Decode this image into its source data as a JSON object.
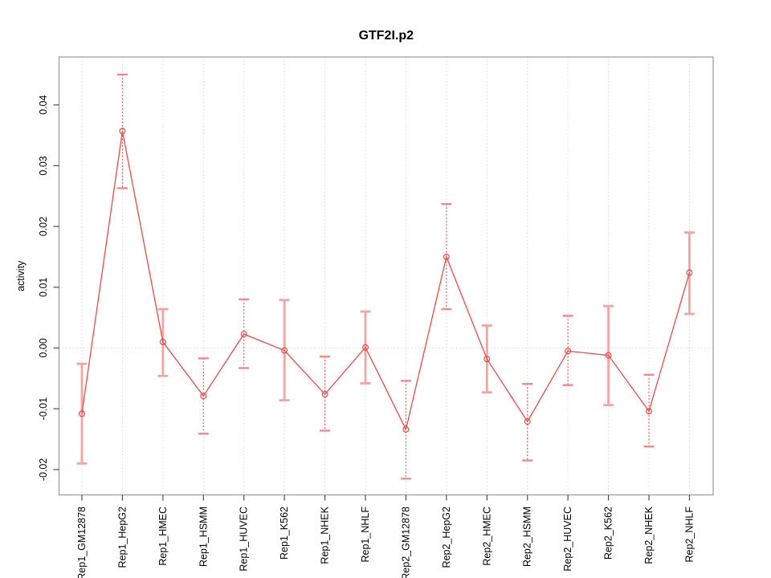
{
  "chart_data": {
    "type": "line",
    "title": "GTF2I.p2",
    "xlabel": "",
    "ylabel": "activity",
    "grid": {
      "vertical": "dotted line at every category",
      "horizontal": "dotted line at y=0 only"
    },
    "ylim": [
      -0.0244,
      0.0478
    ],
    "yticks": [
      -0.02,
      -0.01,
      0,
      0.01,
      0.02,
      0.03,
      0.04
    ],
    "ytick_labels": [
      "-0.02",
      "-0.01",
      "0.00",
      "0.01",
      "0.02",
      "0.03",
      "0.04"
    ],
    "categories": [
      "Rep1_GM12878",
      "Rep1_HepG2",
      "Rep1_HMEC",
      "Rep1_HSMM",
      "Rep1_HUVEC",
      "Rep1_K562",
      "Rep1_NHEK",
      "Rep1_NHLF",
      "Rep2_GM12878",
      "Rep2_HepG2",
      "Rep2_HMEC",
      "Rep2_HSMM",
      "Rep2_HUVEC",
      "Rep2_K562",
      "Rep2_NHEK",
      "Rep2_NHLF"
    ],
    "series": [
      {
        "name": "activity",
        "marker": "open-circle",
        "values": [
          -0.0108,
          0.0357,
          0.001,
          -0.0079,
          0.0023,
          -0.0004,
          -0.0076,
          0.0001,
          -0.0134,
          0.015,
          -0.0018,
          -0.0121,
          -0.0005,
          -0.0012,
          -0.0104,
          0.0124
        ],
        "ci_low": [
          -0.019,
          0.0263,
          -0.0046,
          -0.0141,
          -0.0033,
          -0.0086,
          -0.0136,
          -0.0058,
          -0.0215,
          0.0064,
          -0.0073,
          -0.0185,
          -0.0061,
          -0.0094,
          -0.0162,
          0.0056
        ],
        "ci_high": [
          -0.0026,
          0.045,
          0.0064,
          -0.0017,
          0.008,
          0.0079,
          -0.0014,
          0.006,
          -0.0054,
          0.0237,
          0.0037,
          -0.0059,
          0.0053,
          0.0069,
          -0.0044,
          0.019
        ],
        "bar_styles": [
          "solid",
          "dotted",
          "solid",
          "dotted",
          "dotted",
          "solid",
          "dotted",
          "solid",
          "dotted",
          "dotted",
          "solid",
          "dotted",
          "dotted",
          "solid",
          "dotted",
          "solid"
        ]
      }
    ],
    "legend": {
      "visible": false
    },
    "colors": {
      "line": "#f04848",
      "marker": "#f04848",
      "solid_bar": "#f5a3a3",
      "dotted_bar_cap": "#f28a8a",
      "grid": "#d8d8d8",
      "box": "#999999",
      "tick": "#4d4d4d",
      "text": "#000000",
      "background": "#ffffff"
    }
  }
}
